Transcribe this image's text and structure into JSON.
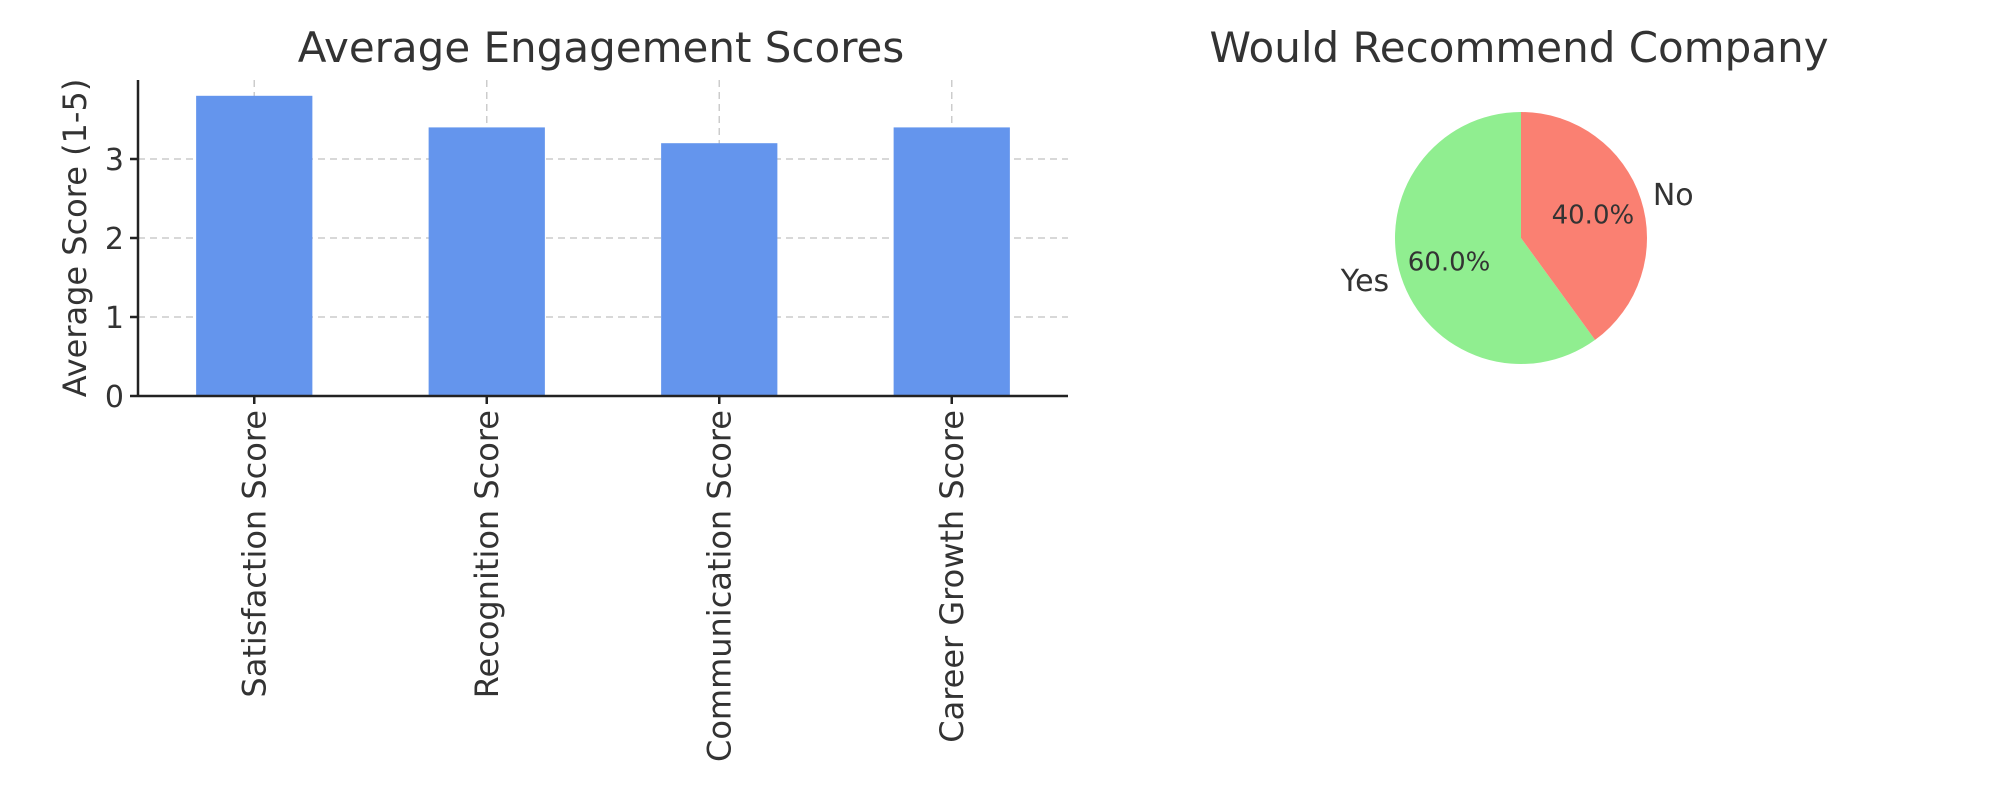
{
  "chart_data": [
    {
      "type": "bar",
      "title": "Average Engagement Scores",
      "xlabel": "",
      "ylabel": "Average Score (1-5)",
      "categories": [
        "Satisfaction Score",
        "Recognition Score",
        "Communication Score",
        "Career Growth Score"
      ],
      "values": [
        3.8,
        3.4,
        3.2,
        3.4
      ],
      "yticks": [
        "0",
        "1",
        "2",
        "3"
      ],
      "ylim": [
        0,
        4
      ],
      "grid": true,
      "color": "#6495ED"
    },
    {
      "type": "pie",
      "title": "Would Recommend Company",
      "slices": [
        {
          "label": "Yes",
          "value": 60,
          "pct_label": "60.0%",
          "color": "#90EE90"
        },
        {
          "label": "No",
          "value": 40,
          "pct_label": "40.0%",
          "color": "#FA8072"
        }
      ]
    }
  ]
}
